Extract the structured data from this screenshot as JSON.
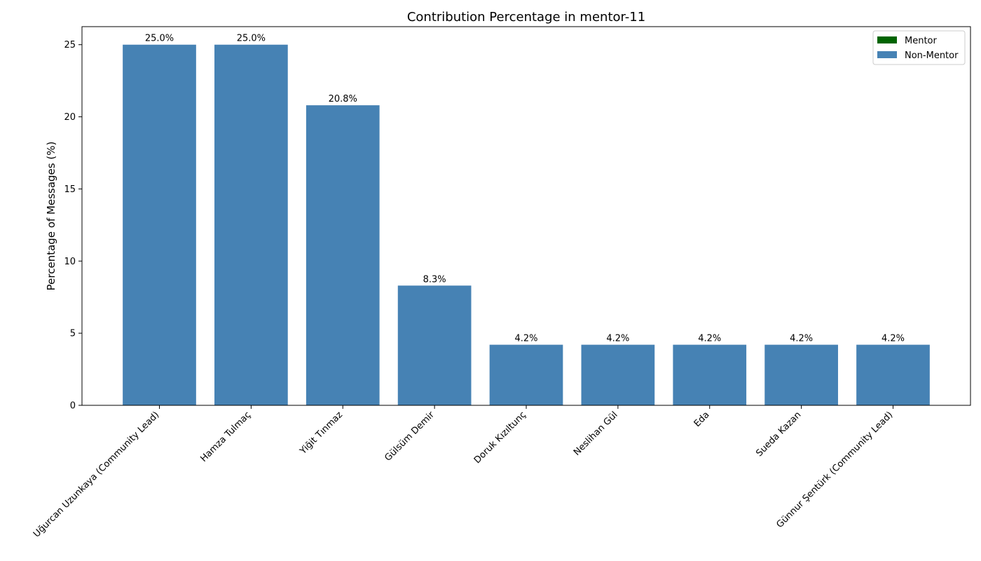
{
  "chart_data": {
    "type": "bar",
    "title": "Contribution Percentage in mentor-11",
    "xlabel": "",
    "ylabel": "Percentage of Messages (%)",
    "ylim": [
      0,
      26.25
    ],
    "yticks": [
      0,
      5,
      10,
      15,
      20,
      25
    ],
    "grid": false,
    "legend_position": "top-right",
    "categories": [
      "Uğurcan Uzunkaya (Community Lead)",
      "Hamza Tulmaç",
      "Yiğit Tınmaz",
      "Gülsüm Demir",
      "Doruk Kızıltunç",
      "Neslihan Gül",
      "Eda",
      "Sueda Kazan",
      "Günnur Şentürk (Community Lead)"
    ],
    "values": [
      25.0,
      25.0,
      20.8,
      8.3,
      4.2,
      4.2,
      4.2,
      4.2,
      4.2
    ],
    "data_labels": [
      "25.0%",
      "25.0%",
      "20.8%",
      "8.3%",
      "4.2%",
      "4.2%",
      "4.2%",
      "4.2%",
      "4.2%"
    ],
    "legend": [
      {
        "label": "Mentor",
        "color": "#006400"
      },
      {
        "label": "Non-Mentor",
        "color": "#4682b4"
      }
    ],
    "bar_color": "#4682b4"
  }
}
